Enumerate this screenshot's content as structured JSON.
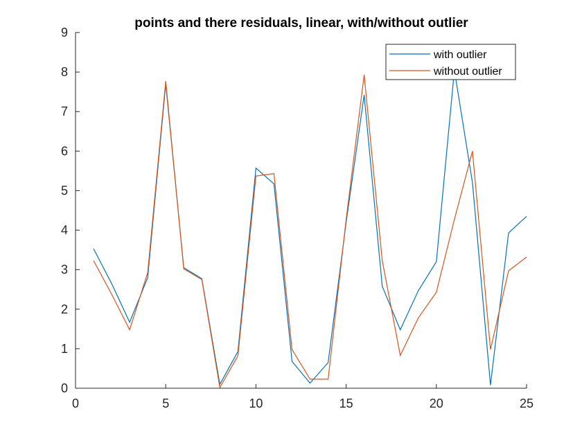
{
  "chart_data": {
    "type": "line",
    "title": "points and there residuals, linear, with/without outlier",
    "xlabel": "",
    "ylabel": "",
    "xlim": [
      0,
      25
    ],
    "ylim": [
      0,
      9
    ],
    "xticks": [
      0,
      5,
      10,
      15,
      20,
      25
    ],
    "yticks": [
      0,
      1,
      2,
      3,
      4,
      5,
      6,
      7,
      8,
      9
    ],
    "grid": false,
    "legend_position": "top-right",
    "x": [
      1,
      2,
      3,
      4,
      5,
      6,
      7,
      8,
      9,
      10,
      11,
      12,
      13,
      14,
      15,
      16,
      17,
      18,
      19,
      20,
      21,
      22,
      23,
      24,
      25
    ],
    "series": [
      {
        "name": "with outlier",
        "color": "#0072BD",
        "values": [
          3.53,
          2.65,
          1.67,
          2.8,
          7.7,
          3.05,
          2.77,
          0.1,
          0.93,
          5.57,
          5.17,
          0.68,
          0.13,
          0.65,
          4.2,
          7.42,
          2.58,
          1.48,
          2.47,
          3.2,
          8.05,
          5.2,
          0.08,
          3.93,
          4.35
        ]
      },
      {
        "name": "without outlier",
        "color": "#D95319",
        "values": [
          3.23,
          2.38,
          1.48,
          2.93,
          7.77,
          3.02,
          2.75,
          0.02,
          0.82,
          5.37,
          5.43,
          0.98,
          0.23,
          0.23,
          4.27,
          7.93,
          3.23,
          0.83,
          1.78,
          2.43,
          4.27,
          6.0,
          0.98,
          2.97,
          3.32
        ]
      }
    ]
  }
}
